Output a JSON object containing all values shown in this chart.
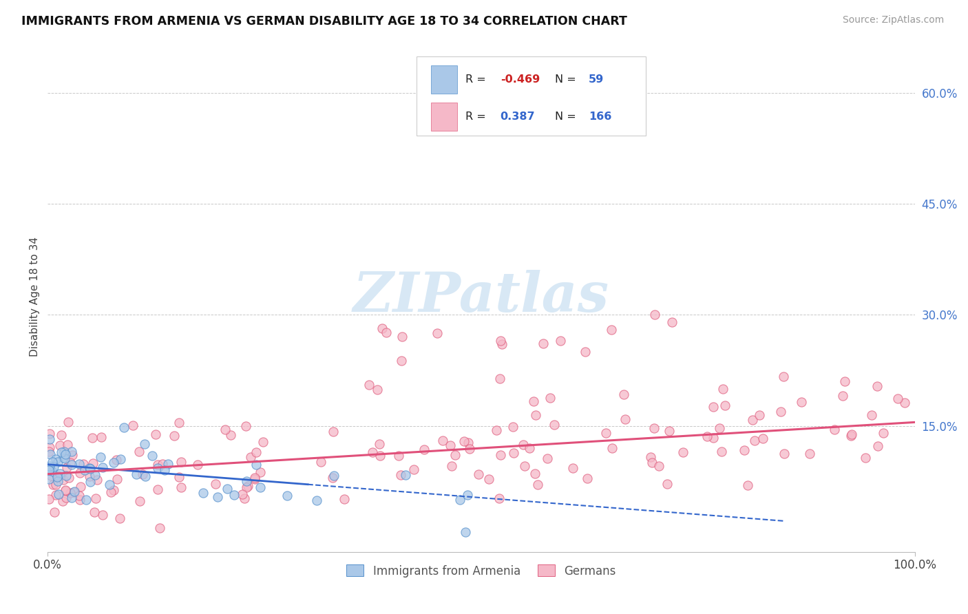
{
  "title": "IMMIGRANTS FROM ARMENIA VS GERMAN DISABILITY AGE 18 TO 34 CORRELATION CHART",
  "source": "Source: ZipAtlas.com",
  "ylabel": "Disability Age 18 to 34",
  "xlim": [
    0,
    100
  ],
  "ylim": [
    -2,
    67
  ],
  "ytick_vals": [
    15,
    30,
    45,
    60
  ],
  "ytick_labels": [
    "15.0%",
    "30.0%",
    "45.0%",
    "60.0%"
  ],
  "xtick_vals": [
    0,
    100
  ],
  "xtick_labels": [
    "0.0%",
    "100.0%"
  ],
  "armenia_color": "#aac8e8",
  "armenia_edge": "#5590cc",
  "germany_color": "#f5b8c8",
  "germany_edge": "#e06080",
  "armenia_R": -0.469,
  "armenia_N": 59,
  "germany_R": 0.387,
  "germany_N": 166,
  "legend_labels": [
    "Immigrants from Armenia",
    "Germans"
  ],
  "watermark": "ZIPatlas",
  "background_color": "#ffffff",
  "grid_color": "#c8c8c8",
  "arm_line_color": "#3366cc",
  "ger_line_color": "#e0507a",
  "arm_line_intercept": 9.8,
  "arm_line_slope": -0.09,
  "ger_line_intercept": 8.5,
  "ger_line_slope": 0.07
}
